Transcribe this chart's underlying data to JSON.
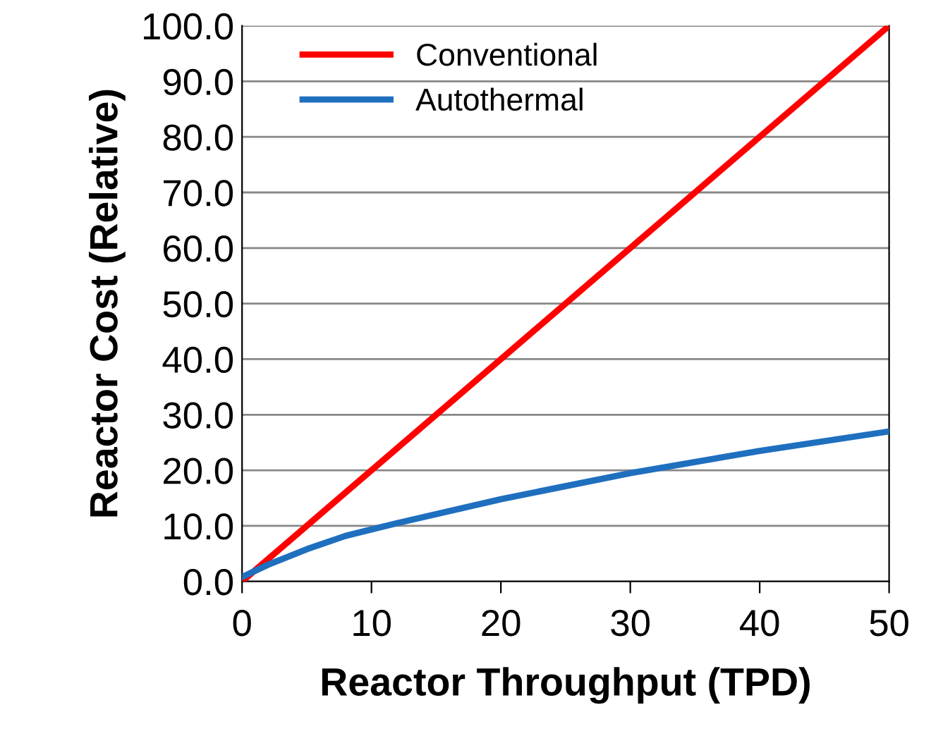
{
  "chart_data": {
    "type": "line",
    "xlabel": "Reactor Throughput (TPD)",
    "ylabel": "Reactor Cost (Relative)",
    "xlim": [
      0,
      50
    ],
    "xticks": [
      0,
      10,
      20,
      30,
      40,
      50
    ],
    "ylim": [
      0,
      100
    ],
    "yticks": [
      {
        "value": 0,
        "label": "0.0"
      },
      {
        "value": 10,
        "label": "10.0"
      },
      {
        "value": 20,
        "label": "20.0"
      },
      {
        "value": 30,
        "label": "30.0"
      },
      {
        "value": 40,
        "label": "40.0"
      },
      {
        "value": 50,
        "label": "50.0"
      },
      {
        "value": 60,
        "label": "60.0"
      },
      {
        "value": 70,
        "label": "70.0"
      },
      {
        "value": 80,
        "label": "80.0"
      },
      {
        "value": 90,
        "label": "90.0"
      },
      {
        "value": 100,
        "label": "100.0"
      }
    ],
    "grid": "y",
    "legend": "top left",
    "marker": "none",
    "line_style": "solid",
    "series": [
      {
        "name": "Conventional",
        "color": "#ff0000",
        "x": [
          0,
          50
        ],
        "values": [
          0,
          100
        ]
      },
      {
        "name": "Autothermal",
        "color": "#1f6fbf",
        "x": [
          0,
          2,
          5,
          8,
          12,
          20,
          30,
          40,
          50
        ],
        "values": [
          0.8,
          3,
          5.8,
          8.2,
          10.5,
          14.8,
          19.5,
          23.5,
          27
        ]
      }
    ]
  }
}
